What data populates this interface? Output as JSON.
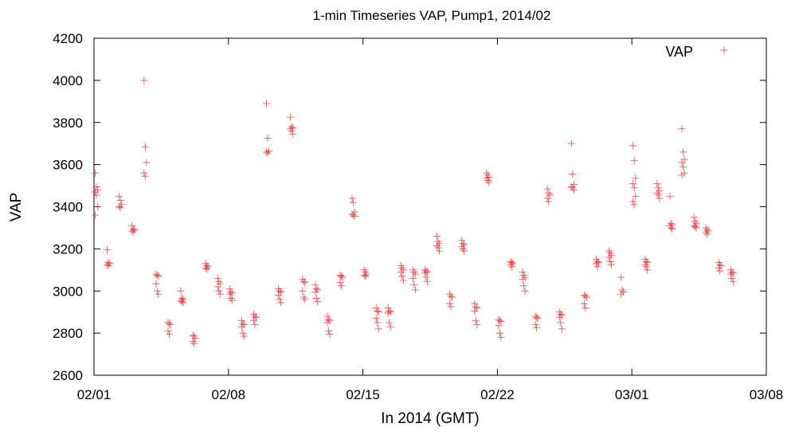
{
  "chart_data": {
    "type": "scatter",
    "title": "1-min Timeseries VAP, Pump1, 2014/02",
    "xlabel": "In 2014 (GMT)",
    "ylabel": "VAP",
    "xlim": [
      "2014-02-01",
      "2014-03-08"
    ],
    "ylim": [
      2600,
      4200
    ],
    "xticks": [
      "02/01",
      "02/08",
      "02/15",
      "02/22",
      "03/01",
      "03/08"
    ],
    "yticks": [
      2600,
      2800,
      3000,
      3200,
      3400,
      3600,
      3800,
      4000,
      4200
    ],
    "legend_position": "top-right",
    "grid": false,
    "marker": "+",
    "series": [
      {
        "name": "VAP",
        "color": "#e8202a",
        "points": [
          {
            "t": "2014-02-01 03:00",
            "y": [
              3560,
              3495,
              3480,
              3470,
              3455,
              3400,
              3360
            ]
          },
          {
            "t": "2014-02-01 18:00",
            "y": [
              3195,
              3135,
              3130,
              3125,
              3120
            ]
          },
          {
            "t": "2014-02-02 09:00",
            "y": [
              3450,
              3430,
              3410,
              3400,
              3395
            ]
          },
          {
            "t": "2014-02-03 01:00",
            "y": [
              3310,
              3295,
              3290,
              3285,
              3280
            ]
          },
          {
            "t": "2014-02-03 16:00",
            "y": [
              4000,
              3685,
              3610,
              3560,
              3545
            ]
          },
          {
            "t": "2014-02-04 07:00",
            "y": [
              3080,
              3075,
              3070,
              3035,
              3000,
              2985
            ]
          },
          {
            "t": "2014-02-04 22:00",
            "y": [
              2850,
              2845,
              2840,
              2810,
              2795
            ]
          },
          {
            "t": "2014-02-05 14:00",
            "y": [
              3000,
              2965,
              2960,
              2955,
              2950,
              2945
            ]
          },
          {
            "t": "2014-02-06 05:00",
            "y": [
              2790,
              2785,
              2775,
              2760,
              2750
            ]
          },
          {
            "t": "2014-02-06 21:00",
            "y": [
              3130,
              3120,
              3115,
              3110,
              3105
            ]
          },
          {
            "t": "2014-02-07 12:00",
            "y": [
              3060,
              3045,
              3035,
              3020,
              3000,
              2985
            ]
          },
          {
            "t": "2014-02-08 03:00",
            "y": [
              3010,
              2995,
              2990,
              2985,
              2965,
              2955
            ]
          },
          {
            "t": "2014-02-08 18:00",
            "y": [
              2860,
              2845,
              2840,
              2830,
              2800,
              2785
            ]
          },
          {
            "t": "2014-02-09 09:00",
            "y": [
              2890,
              2880,
              2875,
              2860,
              2840
            ]
          },
          {
            "t": "2014-02-10 01:00",
            "y": [
              3890,
              3725,
              3665,
              3660,
              3655
            ]
          },
          {
            "t": "2014-02-10 16:00",
            "y": [
              3010,
              3000,
              2995,
              2980,
              2960,
              2945
            ]
          },
          {
            "t": "2014-02-11 07:00",
            "y": [
              3825,
              3780,
              3775,
              3770,
              3760,
              3745
            ]
          },
          {
            "t": "2014-02-11 22:00",
            "y": [
              3055,
              3045,
              3040,
              3000,
              2970,
              2960
            ]
          },
          {
            "t": "2014-02-12 14:00",
            "y": [
              3030,
              3010,
              3005,
              2995,
              2965,
              2950
            ]
          },
          {
            "t": "2014-02-13 05:00",
            "y": [
              2880,
              2865,
              2860,
              2850,
              2810,
              2795
            ]
          },
          {
            "t": "2014-02-13 21:00",
            "y": [
              3075,
              3070,
              3065,
              3040,
              3025
            ]
          },
          {
            "t": "2014-02-14 12:00",
            "y": [
              3440,
              3420,
              3375,
              3365,
              3360,
              3355
            ]
          },
          {
            "t": "2014-02-15 03:00",
            "y": [
              3100,
              3090,
              3080,
              3075,
              3070
            ]
          },
          {
            "t": "2014-02-15 18:00",
            "y": [
              2920,
              2905,
              2900,
              2870,
              2850,
              2820
            ]
          },
          {
            "t": "2014-02-16 09:00",
            "y": [
              2920,
              2905,
              2900,
              2895,
              2850,
              2830
            ]
          },
          {
            "t": "2014-02-17 01:00",
            "y": [
              3120,
              3110,
              3100,
              3090,
              3070,
              3050
            ]
          },
          {
            "t": "2014-02-17 16:00",
            "y": [
              3100,
              3090,
              3080,
              3060,
              3030,
              3005
            ]
          },
          {
            "t": "2014-02-18 07:00",
            "y": [
              3100,
              3095,
              3090,
              3085,
              3065,
              3045
            ]
          },
          {
            "t": "2014-02-18 22:00",
            "y": [
              3260,
              3235,
              3225,
              3215,
              3205,
              3190
            ]
          },
          {
            "t": "2014-02-19 14:00",
            "y": [
              2985,
              2975,
              2970,
              2940,
              2925
            ]
          },
          {
            "t": "2014-02-20 05:00",
            "y": [
              3240,
              3225,
              3220,
              3210,
              3200,
              3190
            ]
          },
          {
            "t": "2014-02-20 21:00",
            "y": [
              2940,
              2925,
              2920,
              2905,
              2860,
              2840
            ]
          },
          {
            "t": "2014-02-21 12:00",
            "y": [
              3560,
              3550,
              3540,
              3535,
              3525,
              3515
            ]
          },
          {
            "t": "2014-02-22 03:00",
            "y": [
              2865,
              2860,
              2855,
              2835,
              2800,
              2780
            ]
          },
          {
            "t": "2014-02-22 18:00",
            "y": [
              3140,
              3135,
              3130,
              3125,
              3115
            ]
          },
          {
            "t": "2014-02-23 09:00",
            "y": [
              3090,
              3075,
              3065,
              3055,
              3025,
              3000
            ]
          },
          {
            "t": "2014-02-24 01:00",
            "y": [
              2880,
              2875,
              2870,
              2840,
              2825
            ]
          },
          {
            "t": "2014-02-24 16:00",
            "y": [
              3485,
              3465,
              3455,
              3440,
              3425
            ]
          },
          {
            "t": "2014-02-25 07:00",
            "y": [
              2900,
              2890,
              2885,
              2875,
              2850,
              2820
            ]
          },
          {
            "t": "2014-02-25 22:00",
            "y": [
              3700,
              3555,
              3505,
              3495,
              3490,
              3480
            ]
          },
          {
            "t": "2014-02-26 14:00",
            "y": [
              2980,
              2975,
              2970,
              2940,
              2920
            ]
          },
          {
            "t": "2014-02-27 05:00",
            "y": [
              3150,
              3140,
              3135,
              3130,
              3115
            ]
          },
          {
            "t": "2014-02-27 21:00",
            "y": [
              3190,
              3180,
              3170,
              3160,
              3140,
              3125
            ]
          },
          {
            "t": "2014-02-28 12:00",
            "y": [
              3065,
              3005,
              2995,
              2985
            ]
          },
          {
            "t": "2014-03-01 03:00",
            "y": [
              3690,
              3620,
              3535,
              3510,
              3490,
              3450,
              3425,
              3410
            ]
          },
          {
            "t": "2014-03-01 18:00",
            "y": [
              3150,
              3140,
              3135,
              3125,
              3115,
              3100
            ]
          },
          {
            "t": "2014-03-02 09:00",
            "y": [
              3510,
              3490,
              3475,
              3465,
              3455,
              3440
            ]
          },
          {
            "t": "2014-03-03 01:00",
            "y": [
              3450,
              3320,
              3315,
              3310,
              3300,
              3295
            ]
          },
          {
            "t": "2014-03-03 16:00",
            "y": [
              3770,
              3660,
              3625,
              3610,
              3590,
              3560,
              3550
            ]
          },
          {
            "t": "2014-03-04 07:00",
            "y": [
              3350,
              3330,
              3320,
              3310,
              3305,
              3300
            ]
          },
          {
            "t": "2014-03-04 22:00",
            "y": [
              3300,
              3290,
              3285,
              3280,
              3270
            ]
          },
          {
            "t": "2014-03-05 14:00",
            "y": [
              3135,
              3125,
              3120,
              3110,
              3095
            ]
          },
          {
            "t": "2014-03-06 05:00",
            "y": [
              3100,
              3090,
              3085,
              3080,
              3060,
              3045
            ]
          }
        ]
      }
    ]
  }
}
